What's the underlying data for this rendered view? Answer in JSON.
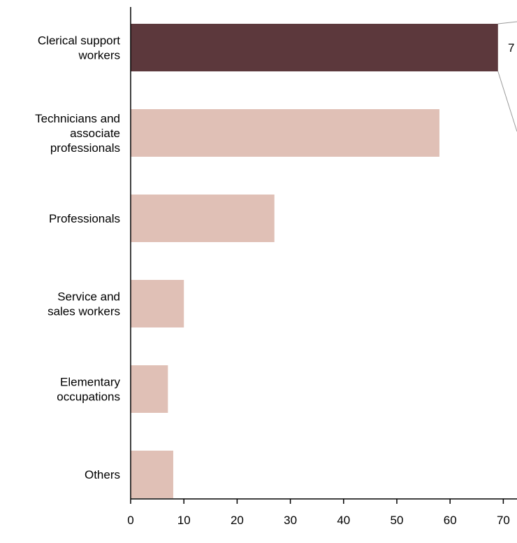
{
  "chart_data": {
    "type": "bar",
    "orientation": "horizontal",
    "categories": [
      "Clerical support workers",
      "Technicians and associate professionals",
      "Professionals",
      "Service and sales workers",
      "Elementary occupations",
      "Others"
    ],
    "category_label_lines": [
      [
        "Clerical support",
        "workers"
      ],
      [
        "Technicians and",
        "associate",
        "professionals"
      ],
      [
        "Professionals"
      ],
      [
        "Service and",
        "sales workers"
      ],
      [
        "Elementary",
        "occupations"
      ],
      [
        "Others"
      ]
    ],
    "values": [
      69,
      58,
      27,
      10,
      7,
      8
    ],
    "highlight_index": 0,
    "highlight_label": "7",
    "xlim": [
      0,
      70
    ],
    "xticks": [
      "0",
      "10",
      "20",
      "30",
      "40",
      "50",
      "60",
      "70"
    ],
    "title": "",
    "xlabel": "",
    "ylabel": "",
    "grid": false,
    "colors": {
      "highlight": "#5c383c",
      "bar": "#e0c0b6",
      "axis": "#000000",
      "callout": "#9a9a9a"
    }
  }
}
